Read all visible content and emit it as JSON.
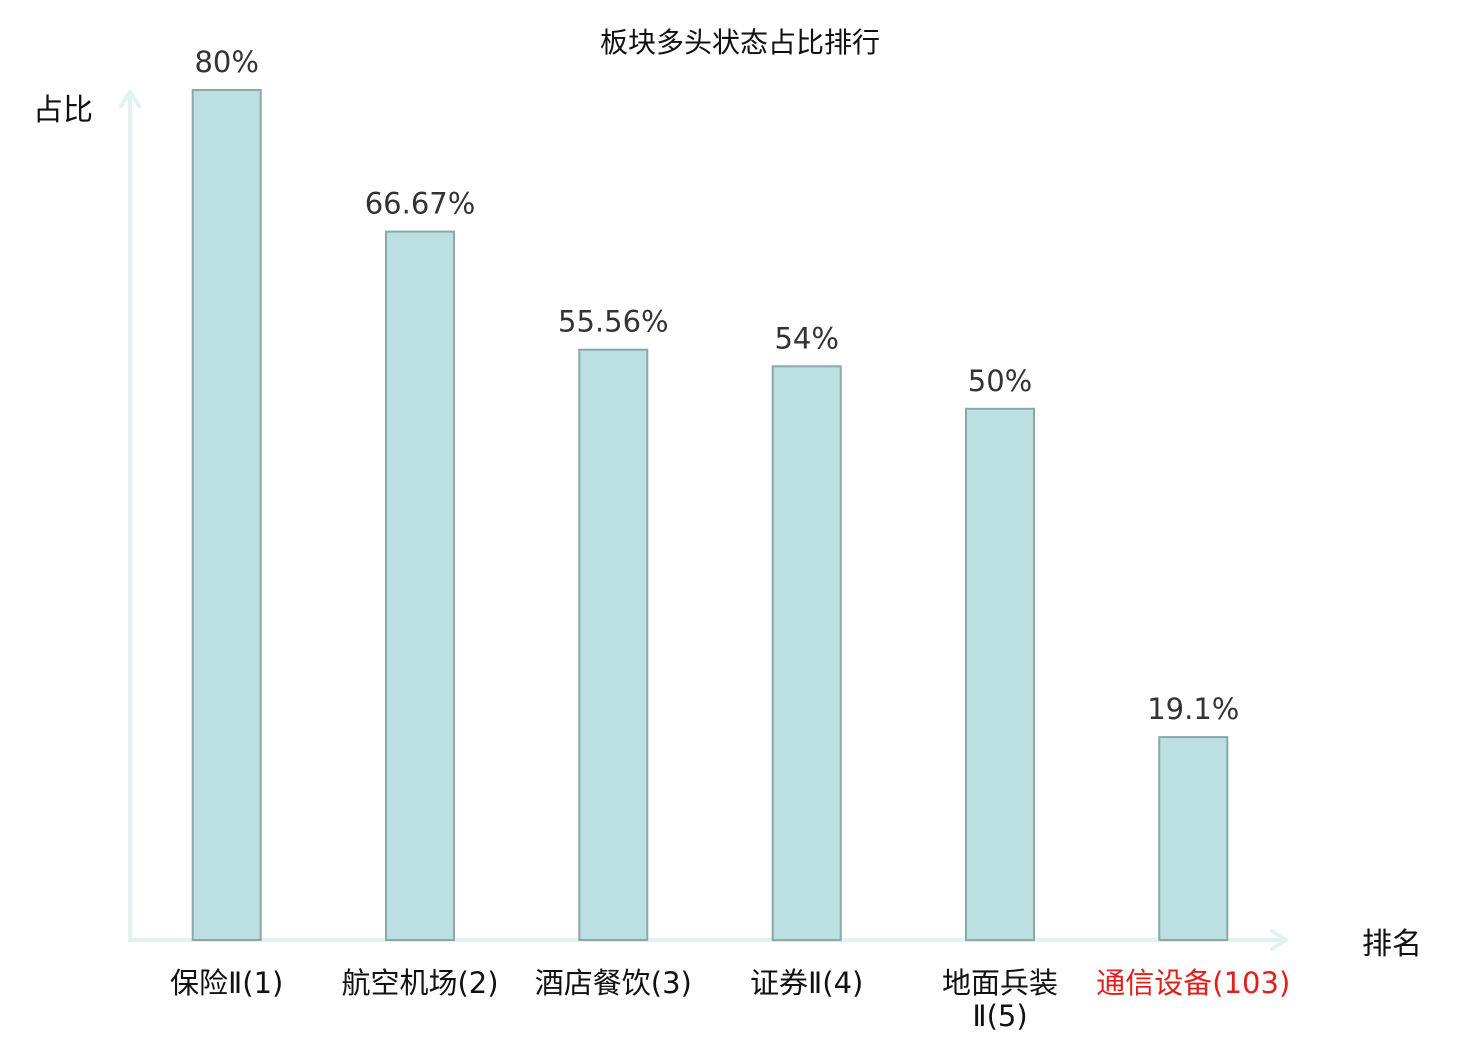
{
  "chart_data": {
    "type": "bar",
    "title": "板块多头状态占比排行",
    "ylabel": "占比",
    "xlabel": "排名",
    "ylim": [
      0,
      80
    ],
    "categories": [
      [
        "保险Ⅱ(1)"
      ],
      [
        "航空机场(2)"
      ],
      [
        "酒店餐饮(3)"
      ],
      [
        "证券Ⅱ(4)"
      ],
      [
        "地面兵装",
        "Ⅱ(5)"
      ],
      [
        "通信设备(103)"
      ]
    ],
    "values": [
      80,
      66.67,
      55.56,
      54,
      50,
      19.1
    ],
    "value_labels": [
      "80%",
      "66.67%",
      "55.56%",
      "54%",
      "50%",
      "19.1%"
    ],
    "highlight_index": 5,
    "colors": {
      "bar_fill": "#bce0e2",
      "bar_stroke": "#8aa8ab",
      "axis": "#e1f3f1",
      "highlight_label": "#e0201c",
      "label": "#111111",
      "value_label": "#333333"
    }
  }
}
